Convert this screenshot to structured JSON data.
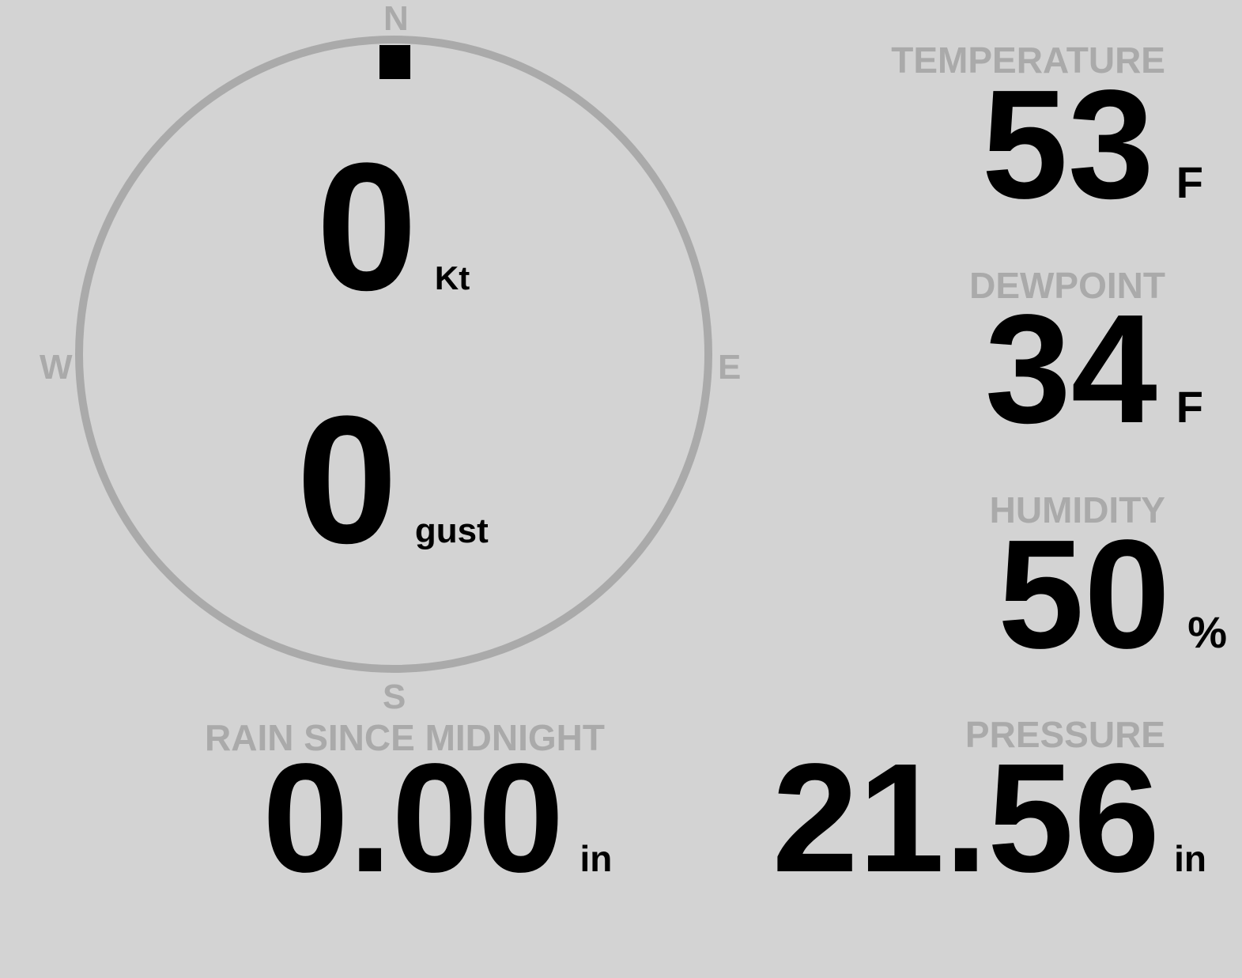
{
  "compass": {
    "north": "N",
    "south": "S",
    "east": "E",
    "west": "W",
    "wind_direction_deg": 0,
    "ring_color": "#aaaaaa",
    "indicator_color": "#000000"
  },
  "wind": {
    "speed": "0",
    "speed_unit": "Kt",
    "gust": "0",
    "gust_unit": "gust"
  },
  "temperature": {
    "label": "TEMPERATURE",
    "value": "53",
    "unit": "F"
  },
  "dewpoint": {
    "label": "DEWPOINT",
    "value": "34",
    "unit": "F"
  },
  "humidity": {
    "label": "HUMIDITY",
    "value": "50",
    "unit": "%"
  },
  "rain": {
    "label": "RAIN SINCE MIDNIGHT",
    "value": "0.00",
    "unit": "in"
  },
  "pressure": {
    "label": "PRESSURE",
    "value": "21.56",
    "unit": "in"
  },
  "colors": {
    "background": "#d3d3d3",
    "label": "#aaaaaa",
    "value": "#000000"
  }
}
